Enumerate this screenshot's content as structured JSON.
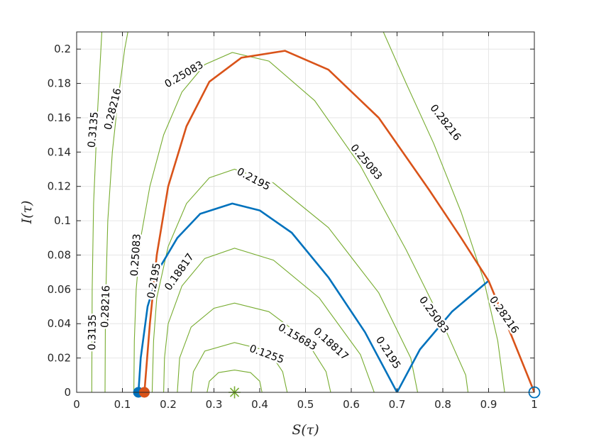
{
  "chart_data": {
    "type": "line",
    "title": "",
    "xlabel": "S(τ)",
    "ylabel": "I(τ)",
    "xlim": [
      0,
      1
    ],
    "ylim": [
      0,
      0.21
    ],
    "xticks": [
      0,
      0.1,
      0.2,
      0.3,
      0.4,
      0.5,
      0.6,
      0.7,
      0.8,
      0.9,
      1
    ],
    "xtick_labels": [
      "0",
      "0.1",
      "0.2",
      "0.3",
      "0.4",
      "0.5",
      "0.6",
      "0.7",
      "0.8",
      "0.9",
      "1"
    ],
    "yticks": [
      0,
      0.02,
      0.04,
      0.06,
      0.08,
      0.1,
      0.12,
      0.14,
      0.16,
      0.18,
      0.2
    ],
    "ytick_labels": [
      "0",
      "0.02",
      "0.04",
      "0.06",
      "0.08",
      "0.1",
      "0.12",
      "0.14",
      "0.16",
      "0.18",
      "0.2"
    ],
    "grid": true,
    "colors": {
      "contour": "#77ac30",
      "blue": "#0072bd",
      "orange": "#d95319",
      "grid": "#e6e6e6",
      "axis": "#262626"
    },
    "contour_center": [
      0.345,
      0
    ],
    "contours": [
      {
        "label": "0.1255",
        "points": [
          [
            0.285,
            0
          ],
          [
            0.29,
            0.0065
          ],
          [
            0.31,
            0.0115
          ],
          [
            0.345,
            0.013
          ],
          [
            0.38,
            0.0115
          ],
          [
            0.4,
            0.0065
          ],
          [
            0.405,
            0
          ]
        ]
      },
      {
        "label": "0.15683",
        "points": [
          [
            0.25,
            0
          ],
          [
            0.255,
            0.012
          ],
          [
            0.28,
            0.024
          ],
          [
            0.345,
            0.029
          ],
          [
            0.42,
            0.024
          ],
          [
            0.45,
            0.012
          ],
          [
            0.46,
            0
          ]
        ]
      },
      {
        "label": "0.18817",
        "points": [
          [
            0.22,
            0
          ],
          [
            0.225,
            0.02
          ],
          [
            0.25,
            0.038
          ],
          [
            0.3,
            0.049
          ],
          [
            0.345,
            0.052
          ],
          [
            0.42,
            0.047
          ],
          [
            0.5,
            0.031
          ],
          [
            0.545,
            0.012
          ],
          [
            0.555,
            0
          ]
        ]
      },
      {
        "label": "0.2195",
        "points": [
          [
            0.19,
            0
          ],
          [
            0.192,
            0.02
          ],
          [
            0.2,
            0.04
          ],
          [
            0.23,
            0.062
          ],
          [
            0.28,
            0.078
          ],
          [
            0.345,
            0.084
          ],
          [
            0.43,
            0.077
          ],
          [
            0.53,
            0.055
          ],
          [
            0.62,
            0.022
          ],
          [
            0.65,
            0
          ]
        ]
      },
      {
        "label": "0.2195",
        "points": [
          [
            0.165,
            0
          ],
          [
            0.168,
            0.03
          ],
          [
            0.175,
            0.055
          ],
          [
            0.2,
            0.085
          ],
          [
            0.24,
            0.11
          ],
          [
            0.29,
            0.125
          ],
          [
            0.345,
            0.13
          ],
          [
            0.43,
            0.122
          ],
          [
            0.55,
            0.096
          ],
          [
            0.66,
            0.058
          ],
          [
            0.73,
            0.02
          ],
          [
            0.745,
            0
          ]
        ]
      },
      {
        "label": "0.25083",
        "points": [
          [
            0.125,
            0
          ],
          [
            0.126,
            0.03
          ],
          [
            0.13,
            0.06
          ],
          [
            0.14,
            0.09
          ],
          [
            0.16,
            0.12
          ],
          [
            0.19,
            0.15
          ],
          [
            0.23,
            0.175
          ],
          [
            0.28,
            0.191
          ],
          [
            0.34,
            0.198
          ],
          [
            0.42,
            0.193
          ],
          [
            0.52,
            0.17
          ],
          [
            0.62,
            0.132
          ],
          [
            0.72,
            0.083
          ],
          [
            0.8,
            0.04
          ],
          [
            0.85,
            0.01
          ],
          [
            0.855,
            0
          ]
        ]
      },
      {
        "label": "0.28216",
        "points": [
          [
            0.062,
            0
          ],
          [
            0.063,
            0.05
          ],
          [
            0.068,
            0.1
          ],
          [
            0.078,
            0.14
          ],
          [
            0.09,
            0.17
          ],
          [
            0.105,
            0.2
          ],
          [
            0.112,
            0.21
          ]
        ]
      },
      {
        "label": "0.28216",
        "points": [
          [
            0.67,
            0.21
          ],
          [
            0.72,
            0.18
          ],
          [
            0.78,
            0.145
          ],
          [
            0.84,
            0.105
          ],
          [
            0.89,
            0.065
          ],
          [
            0.92,
            0.03
          ],
          [
            0.935,
            0
          ]
        ]
      },
      {
        "label": "0.3135",
        "points": [
          [
            0.033,
            0
          ],
          [
            0.034,
            0.06
          ],
          [
            0.037,
            0.11
          ],
          [
            0.045,
            0.16
          ],
          [
            0.055,
            0.21
          ]
        ]
      }
    ],
    "series": [
      {
        "color": "blue",
        "points": [
          [
            0.135,
            0
          ],
          [
            0.14,
            0.02
          ],
          [
            0.155,
            0.05
          ],
          [
            0.18,
            0.072
          ],
          [
            0.22,
            0.09
          ],
          [
            0.27,
            0.104
          ],
          [
            0.34,
            0.11
          ],
          [
            0.4,
            0.106
          ],
          [
            0.47,
            0.093
          ],
          [
            0.55,
            0.067
          ],
          [
            0.63,
            0.035
          ],
          [
            0.7,
            0
          ],
          [
            0.75,
            0.025
          ],
          [
            0.82,
            0.047
          ],
          [
            0.9,
            0.065
          ]
        ]
      },
      {
        "color": "orange",
        "points": [
          [
            0.148,
            0
          ],
          [
            0.16,
            0.04
          ],
          [
            0.175,
            0.08
          ],
          [
            0.2,
            0.12
          ],
          [
            0.24,
            0.155
          ],
          [
            0.29,
            0.181
          ],
          [
            0.36,
            0.195
          ],
          [
            0.455,
            0.199
          ],
          [
            0.55,
            0.188
          ],
          [
            0.66,
            0.16
          ],
          [
            0.77,
            0.118
          ],
          [
            0.84,
            0.09
          ],
          [
            0.9,
            0.065
          ],
          [
            0.95,
            0.033
          ],
          [
            1.0,
            0
          ]
        ]
      }
    ],
    "contour_labels": [
      {
        "text": "0.3135",
        "at": [
          0.037,
          0.153
        ],
        "angle": -85
      },
      {
        "text": "0.3135",
        "at": [
          0.035,
          0.035
        ],
        "angle": -89
      },
      {
        "text": "0.28216",
        "at": [
          0.08,
          0.165
        ],
        "angle": -76
      },
      {
        "text": "0.28216",
        "at": [
          0.064,
          0.05
        ],
        "angle": -88
      },
      {
        "text": "0.28216",
        "at": [
          0.805,
          0.157
        ],
        "angle": 52
      },
      {
        "text": "0.28216",
        "at": [
          0.933,
          0.045
        ],
        "angle": 55
      },
      {
        "text": "0.25083",
        "at": [
          0.235,
          0.185
        ],
        "angle": -30
      },
      {
        "text": "0.25083",
        "at": [
          0.632,
          0.134
        ],
        "angle": 50
      },
      {
        "text": "0.25083",
        "at": [
          0.78,
          0.045
        ],
        "angle": 54
      },
      {
        "text": "0.25083",
        "at": [
          0.13,
          0.08
        ],
        "angle": -86
      },
      {
        "text": "0.2195",
        "at": [
          0.386,
          0.124
        ],
        "angle": 28
      },
      {
        "text": "0.2195",
        "at": [
          0.17,
          0.065
        ],
        "angle": -80
      },
      {
        "text": "0.2195",
        "at": [
          0.68,
          0.023
        ],
        "angle": 57
      },
      {
        "text": "0.18817",
        "at": [
          0.225,
          0.07
        ],
        "angle": -55
      },
      {
        "text": "0.18817",
        "at": [
          0.555,
          0.028
        ],
        "angle": 42
      },
      {
        "text": "0.15683",
        "at": [
          0.482,
          0.032
        ],
        "angle": 30
      },
      {
        "text": "0.1255",
        "at": [
          0.415,
          0.022
        ],
        "angle": 20
      }
    ],
    "markers": [
      {
        "kind": "filled-circle",
        "color": "blue",
        "at": [
          0.135,
          0
        ]
      },
      {
        "kind": "filled-circle",
        "color": "orange",
        "at": [
          0.148,
          0
        ]
      },
      {
        "kind": "open-circle",
        "color": "blue",
        "at": [
          1.0,
          0
        ]
      },
      {
        "kind": "asterisk",
        "color": "contour",
        "at": [
          0.345,
          0
        ]
      }
    ]
  }
}
